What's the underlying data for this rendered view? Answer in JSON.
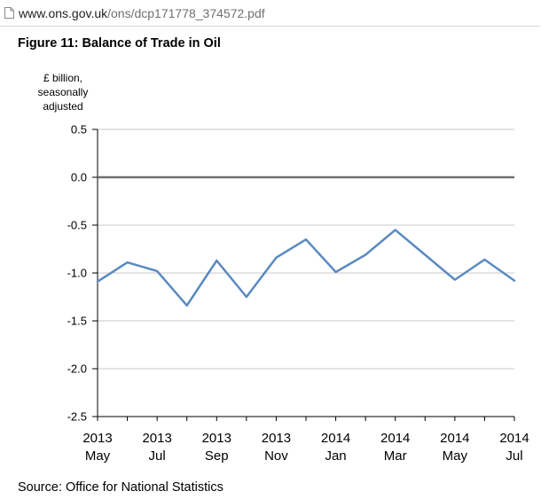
{
  "browser": {
    "url_host": "www.ons.gov.uk",
    "url_path": "/ons/dcp171778_374572.pdf"
  },
  "figure": {
    "title": "Figure 11: Balance of Trade in Oil",
    "source": "Source: Office for National Statistics"
  },
  "chart_data": {
    "type": "line",
    "title": "Figure 11: Balance of Trade in Oil",
    "ylabel_lines": [
      "£ billion,",
      "seasonally",
      "adjusted"
    ],
    "xlabel": "",
    "ylim": [
      -2.5,
      0.5
    ],
    "yticks": [
      0.5,
      0.0,
      -0.5,
      -1.0,
      -1.5,
      -2.0,
      -2.5
    ],
    "ytick_labels": [
      "0.5",
      "0.0",
      "-0.5",
      "-1.0",
      "-1.5",
      "-2.0",
      "-2.5"
    ],
    "grid": true,
    "x": [
      "2013 May",
      "2013 Jun",
      "2013 Jul",
      "2013 Aug",
      "2013 Sep",
      "2013 Oct",
      "2013 Nov",
      "2013 Dec",
      "2014 Jan",
      "2014 Feb",
      "2014 Mar",
      "2014 Apr",
      "2014 May",
      "2014 Jun",
      "2014 Jul"
    ],
    "xtick_labels": [
      {
        "index": 0,
        "year": "2013",
        "month": "May"
      },
      {
        "index": 2,
        "year": "2013",
        "month": "Jul"
      },
      {
        "index": 4,
        "year": "2013",
        "month": "Sep"
      },
      {
        "index": 6,
        "year": "2013",
        "month": "Nov"
      },
      {
        "index": 8,
        "year": "2014",
        "month": "Jan"
      },
      {
        "index": 10,
        "year": "2014",
        "month": "Mar"
      },
      {
        "index": 12,
        "year": "2014",
        "month": "May"
      },
      {
        "index": 14,
        "year": "2014",
        "month": "Jul"
      }
    ],
    "series": [
      {
        "values": [
          -1.09,
          -0.89,
          -0.98,
          -1.34,
          -0.87,
          -1.25,
          -0.84,
          -0.65,
          -0.99,
          -0.81,
          -0.55,
          -0.81,
          -1.07,
          -0.86,
          -1.08
        ]
      }
    ],
    "zero_line": 0.0,
    "colors": {
      "line": "#5a8ac0",
      "zero_line": "#707070",
      "grid": "#c8c8c8",
      "axis": "#000000"
    }
  }
}
